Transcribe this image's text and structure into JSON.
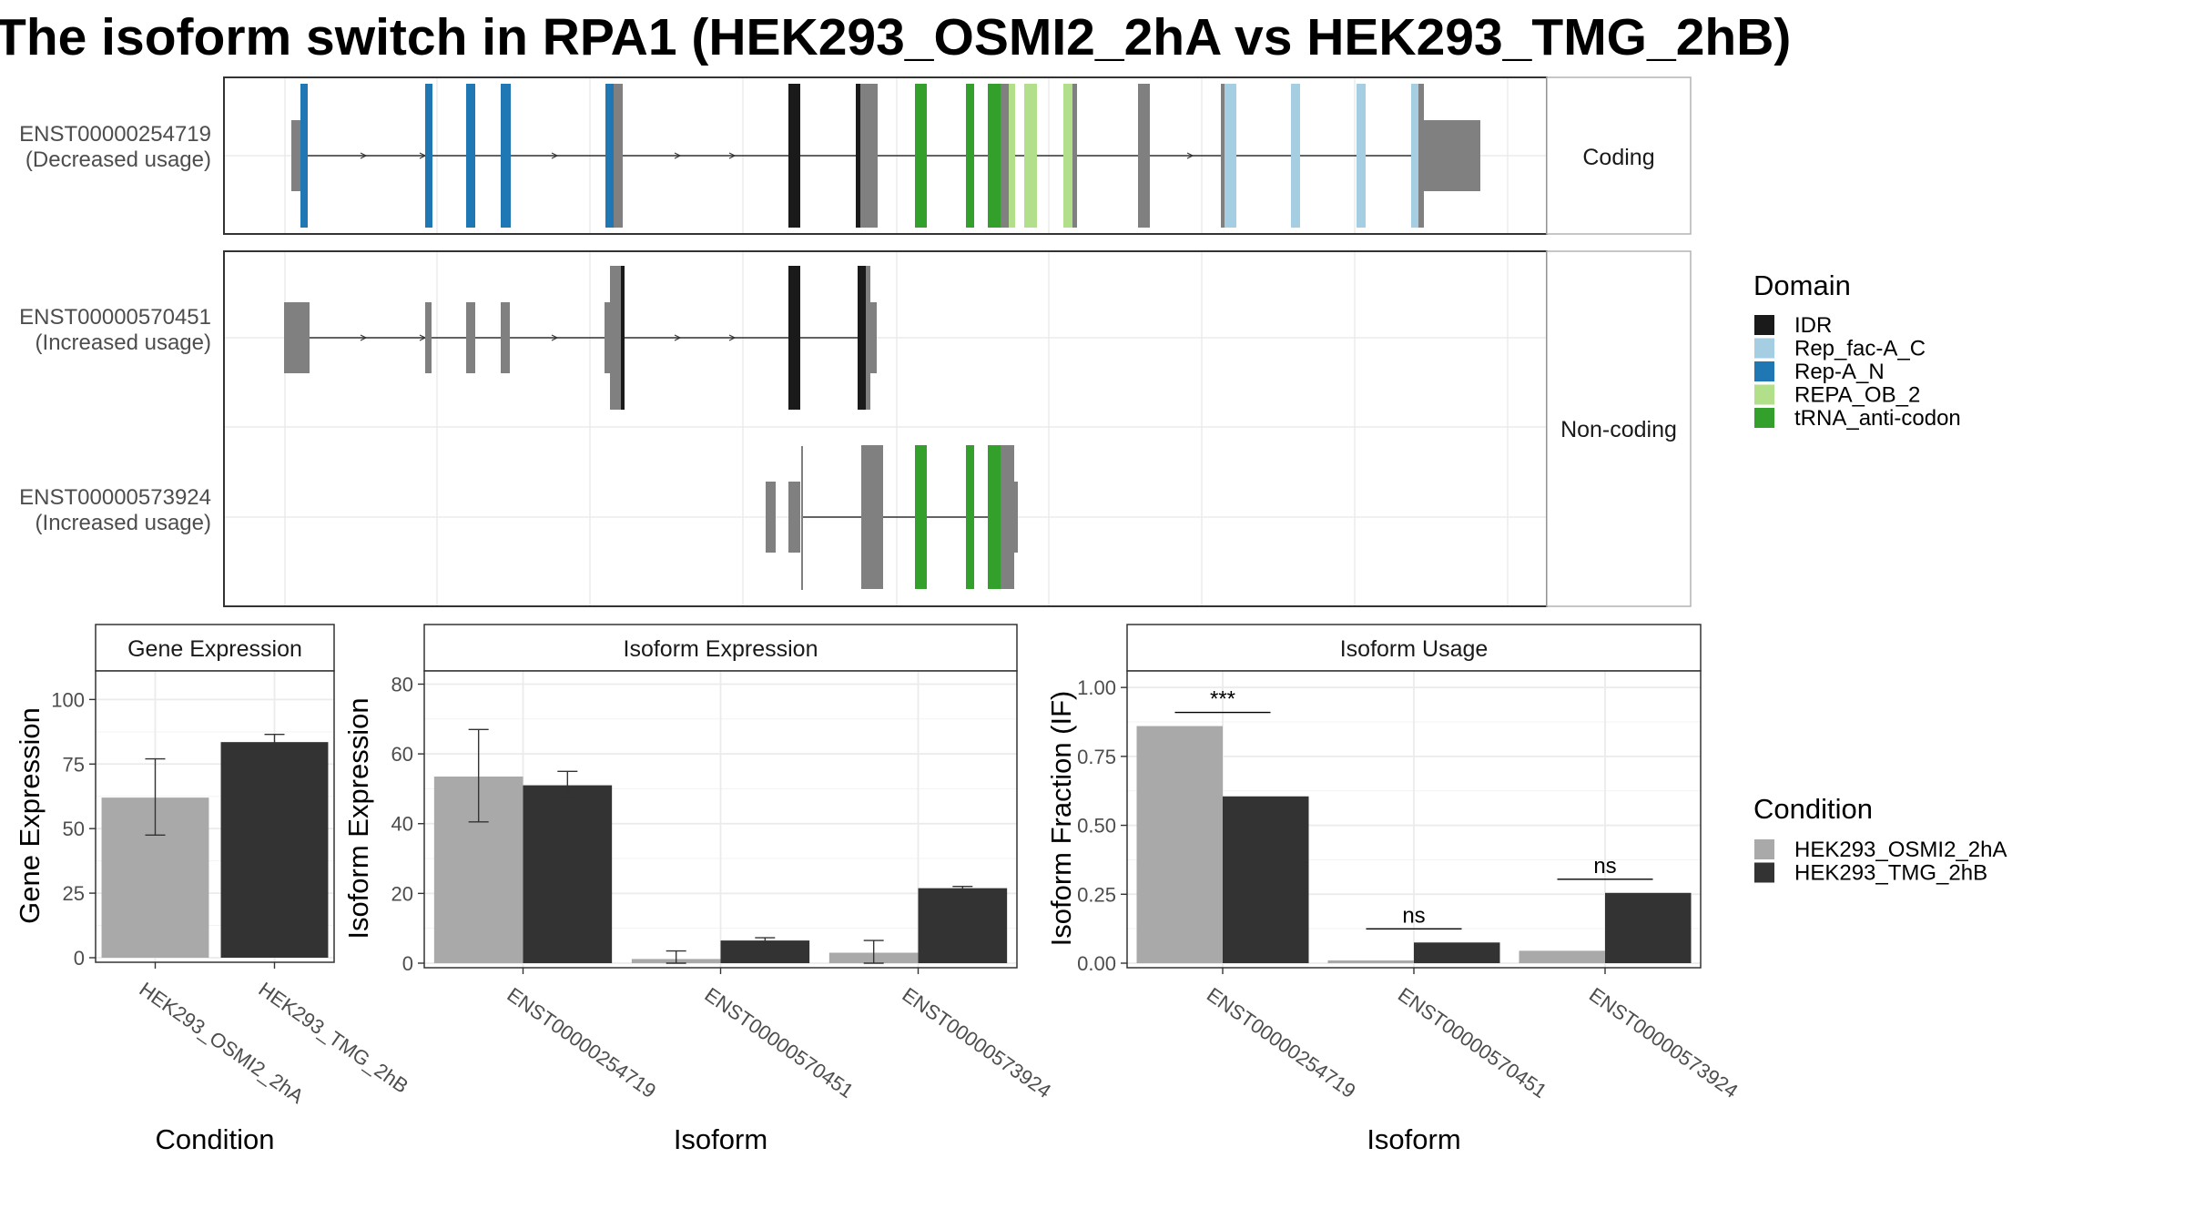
{
  "title": "The isoform switch in RPA1 (HEK293_OSMI2_2hA vs HEK293_TMG_2hB)",
  "colors": {
    "IDR": "#1a1a1a",
    "Rep_fac-A_C": "#a6cee3",
    "Rep-A_N": "#1f78b4",
    "REPA_OB_2": "#b2df8a",
    "tRNA_anti-codon": "#33a02c",
    "exon": "#808080",
    "cond1": "#a9a9a9",
    "cond2": "#333333"
  },
  "structure": {
    "transcripts": [
      {
        "id": "ENST00000254719",
        "usage": "(Decreased usage)",
        "coding": true
      },
      {
        "id": "ENST00000570451",
        "usage": "(Increased usage)",
        "coding": false
      },
      {
        "id": "ENST00000573924",
        "usage": "(Increased usage)",
        "coding": false
      }
    ],
    "facets": [
      "Coding",
      "Non-coding"
    ]
  },
  "legend_domain": {
    "title": "Domain",
    "items": [
      "IDR",
      "Rep_fac-A_C",
      "Rep-A_N",
      "REPA_OB_2",
      "tRNA_anti-codon"
    ]
  },
  "legend_condition": {
    "title": "Condition",
    "items": [
      "HEK293_OSMI2_2hA",
      "HEK293_TMG_2hB"
    ]
  },
  "chart_data": [
    {
      "type": "bar",
      "title": "Gene Expression",
      "xlabel": "Condition",
      "ylabel": "Gene Expression",
      "categories": [
        "HEK293_OSMI2_2hA",
        "HEK293_TMG_2hB"
      ],
      "values": [
        62,
        83.5
      ],
      "error_low": [
        47.5,
        81
      ],
      "error_high": [
        77,
        86.5
      ],
      "ylim": [
        0,
        110
      ],
      "yticks": [
        0,
        25,
        50,
        75,
        100
      ],
      "grid": true
    },
    {
      "type": "bar",
      "title": "Isoform Expression",
      "xlabel": "Isoform",
      "ylabel": "Isoform Expression",
      "categories": [
        "ENST00000254719",
        "ENST00000570451",
        "ENST00000573924"
      ],
      "series": [
        {
          "name": "HEK293_OSMI2_2hA",
          "values": [
            53.5,
            1.2,
            3
          ],
          "error_low": [
            40.5,
            0,
            0
          ],
          "error_high": [
            67,
            3.5,
            6.5
          ]
        },
        {
          "name": "HEK293_TMG_2hB",
          "values": [
            51,
            6.5,
            21.5
          ],
          "error_low": [
            47.5,
            5.8,
            21
          ],
          "error_high": [
            55,
            7.3,
            22
          ]
        }
      ],
      "ylim": [
        0,
        83
      ],
      "yticks": [
        0,
        20,
        40,
        60,
        80
      ],
      "grid": true
    },
    {
      "type": "bar",
      "title": "Isoform Usage",
      "xlabel": "Isoform",
      "ylabel": "Isoform Fraction (IF)",
      "categories": [
        "ENST00000254719",
        "ENST00000570451",
        "ENST00000573924"
      ],
      "series": [
        {
          "name": "HEK293_OSMI2_2hA",
          "values": [
            0.86,
            0.01,
            0.045
          ]
        },
        {
          "name": "HEK293_TMG_2hB",
          "values": [
            0.605,
            0.075,
            0.255
          ]
        }
      ],
      "significance": [
        "***",
        "ns",
        "ns"
      ],
      "ylim": [
        0,
        1.05
      ],
      "yticks": [
        "0.00",
        "0.25",
        "0.50",
        "0.75",
        "1.00"
      ],
      "grid": true
    }
  ]
}
